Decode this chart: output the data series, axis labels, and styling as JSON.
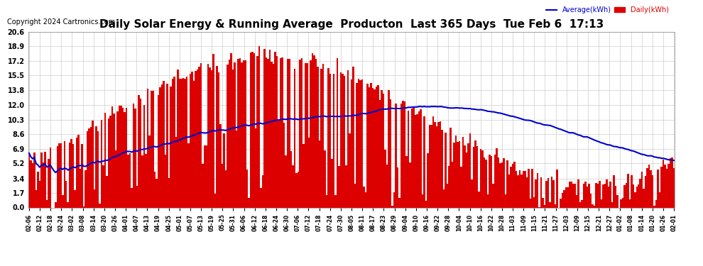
{
  "title": "Daily Solar Energy & Running Average  Producton  Last 365 Days  Tue Feb 6  17:13",
  "copyright": "Copyright 2024 Cartronics.com",
  "legend_avg": "Average(kWh)",
  "legend_daily": "Daily(kWh)",
  "bar_color": "#dd0000",
  "avg_color": "#0000cc",
  "ylim": [
    0.0,
    20.6
  ],
  "yticks": [
    0.0,
    1.7,
    3.4,
    5.2,
    6.9,
    8.6,
    10.3,
    12.0,
    13.8,
    15.5,
    17.2,
    18.9,
    20.6
  ],
  "background_color": "#ffffff",
  "grid_color": "#cccccc",
  "title_fontsize": 11,
  "copyright_fontsize": 7,
  "x_labels": [
    "02-06",
    "02-12",
    "02-18",
    "02-24",
    "03-02",
    "03-08",
    "03-14",
    "03-20",
    "03-26",
    "04-01",
    "04-07",
    "04-13",
    "04-19",
    "04-25",
    "05-01",
    "05-07",
    "05-13",
    "05-19",
    "05-25",
    "05-31",
    "06-06",
    "06-12",
    "06-18",
    "06-24",
    "06-30",
    "07-06",
    "07-12",
    "07-18",
    "07-24",
    "07-30",
    "08-05",
    "08-11",
    "08-17",
    "08-23",
    "08-29",
    "09-04",
    "09-10",
    "09-16",
    "09-22",
    "09-28",
    "10-04",
    "10-10",
    "10-16",
    "10-22",
    "10-28",
    "11-03",
    "11-09",
    "11-15",
    "11-21",
    "11-27",
    "12-03",
    "12-09",
    "12-15",
    "12-21",
    "12-27",
    "01-02",
    "01-08",
    "01-14",
    "01-20",
    "01-26",
    "02-01"
  ]
}
